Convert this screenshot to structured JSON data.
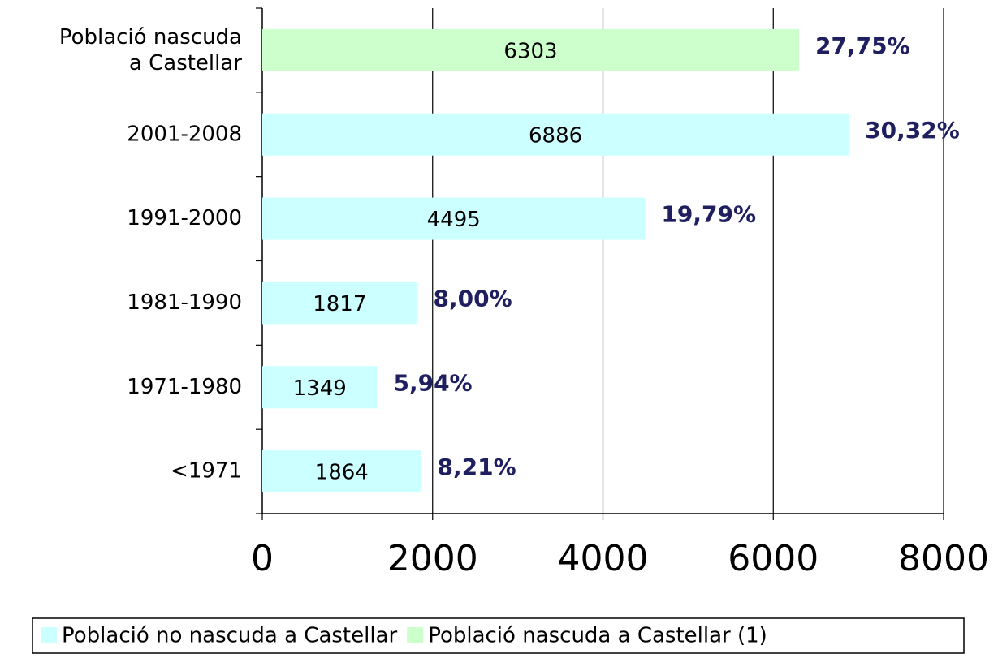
{
  "chart_data": {
    "type": "barh",
    "categories": [
      "Població nascuda\na Castellar",
      "2001-2008",
      "1991-2000",
      "1981-1990",
      "1971-1980",
      "<1971"
    ],
    "series": [
      {
        "name": "Població no nascuda a Castellar",
        "color": "#ccffff",
        "values": [
          null,
          6886,
          4495,
          1817,
          1349,
          1864
        ]
      },
      {
        "name": "Població nascuda a Castellar (1)",
        "color": "#ccffcc",
        "values": [
          6303,
          null,
          null,
          null,
          null,
          null
        ]
      }
    ],
    "percent_labels": [
      "27,75%",
      "30,32%",
      "19,79%",
      "8,00%",
      "5,94%",
      "8,21%"
    ],
    "xlim": [
      0,
      8000
    ],
    "xticks": [
      0,
      2000,
      4000,
      6000,
      8000
    ],
    "grid": true
  }
}
